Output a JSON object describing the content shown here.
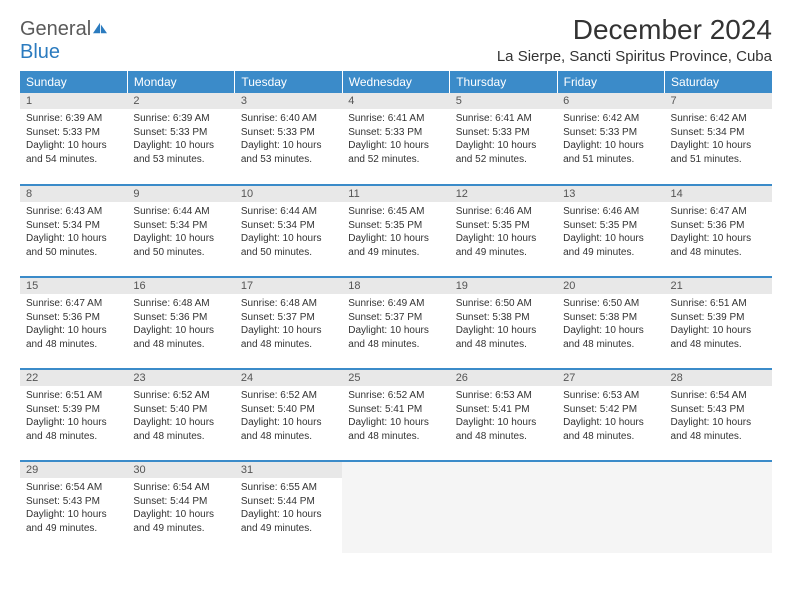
{
  "logo": {
    "word1": "General",
    "word2": "Blue"
  },
  "title": "December 2024",
  "location": "La Sierpe, Sancti Spiritus Province, Cuba",
  "colors": {
    "header_bg": "#3b8bc9",
    "header_text": "#ffffff",
    "daynum_bg": "#e8e8e8",
    "row_border": "#3b8bc9",
    "logo_gray": "#5a5a5a",
    "logo_blue": "#2b7bbf"
  },
  "weekdays": [
    "Sunday",
    "Monday",
    "Tuesday",
    "Wednesday",
    "Thursday",
    "Friday",
    "Saturday"
  ],
  "weeks": [
    [
      {
        "n": "1",
        "sr": "6:39 AM",
        "ss": "5:33 PM",
        "dl": "10 hours and 54 minutes."
      },
      {
        "n": "2",
        "sr": "6:39 AM",
        "ss": "5:33 PM",
        "dl": "10 hours and 53 minutes."
      },
      {
        "n": "3",
        "sr": "6:40 AM",
        "ss": "5:33 PM",
        "dl": "10 hours and 53 minutes."
      },
      {
        "n": "4",
        "sr": "6:41 AM",
        "ss": "5:33 PM",
        "dl": "10 hours and 52 minutes."
      },
      {
        "n": "5",
        "sr": "6:41 AM",
        "ss": "5:33 PM",
        "dl": "10 hours and 52 minutes."
      },
      {
        "n": "6",
        "sr": "6:42 AM",
        "ss": "5:33 PM",
        "dl": "10 hours and 51 minutes."
      },
      {
        "n": "7",
        "sr": "6:42 AM",
        "ss": "5:34 PM",
        "dl": "10 hours and 51 minutes."
      }
    ],
    [
      {
        "n": "8",
        "sr": "6:43 AM",
        "ss": "5:34 PM",
        "dl": "10 hours and 50 minutes."
      },
      {
        "n": "9",
        "sr": "6:44 AM",
        "ss": "5:34 PM",
        "dl": "10 hours and 50 minutes."
      },
      {
        "n": "10",
        "sr": "6:44 AM",
        "ss": "5:34 PM",
        "dl": "10 hours and 50 minutes."
      },
      {
        "n": "11",
        "sr": "6:45 AM",
        "ss": "5:35 PM",
        "dl": "10 hours and 49 minutes."
      },
      {
        "n": "12",
        "sr": "6:46 AM",
        "ss": "5:35 PM",
        "dl": "10 hours and 49 minutes."
      },
      {
        "n": "13",
        "sr": "6:46 AM",
        "ss": "5:35 PM",
        "dl": "10 hours and 49 minutes."
      },
      {
        "n": "14",
        "sr": "6:47 AM",
        "ss": "5:36 PM",
        "dl": "10 hours and 48 minutes."
      }
    ],
    [
      {
        "n": "15",
        "sr": "6:47 AM",
        "ss": "5:36 PM",
        "dl": "10 hours and 48 minutes."
      },
      {
        "n": "16",
        "sr": "6:48 AM",
        "ss": "5:36 PM",
        "dl": "10 hours and 48 minutes."
      },
      {
        "n": "17",
        "sr": "6:48 AM",
        "ss": "5:37 PM",
        "dl": "10 hours and 48 minutes."
      },
      {
        "n": "18",
        "sr": "6:49 AM",
        "ss": "5:37 PM",
        "dl": "10 hours and 48 minutes."
      },
      {
        "n": "19",
        "sr": "6:50 AM",
        "ss": "5:38 PM",
        "dl": "10 hours and 48 minutes."
      },
      {
        "n": "20",
        "sr": "6:50 AM",
        "ss": "5:38 PM",
        "dl": "10 hours and 48 minutes."
      },
      {
        "n": "21",
        "sr": "6:51 AM",
        "ss": "5:39 PM",
        "dl": "10 hours and 48 minutes."
      }
    ],
    [
      {
        "n": "22",
        "sr": "6:51 AM",
        "ss": "5:39 PM",
        "dl": "10 hours and 48 minutes."
      },
      {
        "n": "23",
        "sr": "6:52 AM",
        "ss": "5:40 PM",
        "dl": "10 hours and 48 minutes."
      },
      {
        "n": "24",
        "sr": "6:52 AM",
        "ss": "5:40 PM",
        "dl": "10 hours and 48 minutes."
      },
      {
        "n": "25",
        "sr": "6:52 AM",
        "ss": "5:41 PM",
        "dl": "10 hours and 48 minutes."
      },
      {
        "n": "26",
        "sr": "6:53 AM",
        "ss": "5:41 PM",
        "dl": "10 hours and 48 minutes."
      },
      {
        "n": "27",
        "sr": "6:53 AM",
        "ss": "5:42 PM",
        "dl": "10 hours and 48 minutes."
      },
      {
        "n": "28",
        "sr": "6:54 AM",
        "ss": "5:43 PM",
        "dl": "10 hours and 48 minutes."
      }
    ],
    [
      {
        "n": "29",
        "sr": "6:54 AM",
        "ss": "5:43 PM",
        "dl": "10 hours and 49 minutes."
      },
      {
        "n": "30",
        "sr": "6:54 AM",
        "ss": "5:44 PM",
        "dl": "10 hours and 49 minutes."
      },
      {
        "n": "31",
        "sr": "6:55 AM",
        "ss": "5:44 PM",
        "dl": "10 hours and 49 minutes."
      },
      null,
      null,
      null,
      null
    ]
  ],
  "labels": {
    "sunrise": "Sunrise:",
    "sunset": "Sunset:",
    "daylight": "Daylight:"
  }
}
